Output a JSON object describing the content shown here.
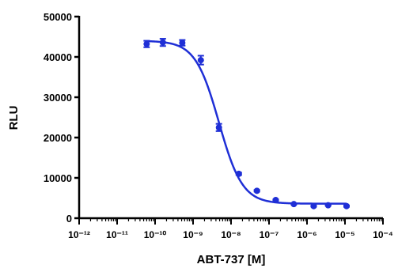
{
  "chart_data": {
    "type": "scatter",
    "title": "",
    "xlabel": "ABT-737 [M]",
    "ylabel": "RLU",
    "x_scale": "log",
    "xlim": [
      1e-12,
      0.0001
    ],
    "ylim": [
      0,
      50000
    ],
    "x_ticks": [
      {
        "value": 1e-12,
        "label": "10⁻¹²"
      },
      {
        "value": 1e-11,
        "label": "10⁻¹¹"
      },
      {
        "value": 1e-10,
        "label": "10⁻¹⁰"
      },
      {
        "value": 1e-09,
        "label": "10⁻⁹"
      },
      {
        "value": 1e-08,
        "label": "10⁻⁸"
      },
      {
        "value": 1e-07,
        "label": "10⁻⁷"
      },
      {
        "value": 1e-06,
        "label": "10⁻⁶"
      },
      {
        "value": 1e-05,
        "label": "10⁻⁵"
      },
      {
        "value": 0.0001,
        "label": "10⁻⁴"
      }
    ],
    "y_ticks": [
      {
        "value": 0,
        "label": "0"
      },
      {
        "value": 10000,
        "label": "10000"
      },
      {
        "value": 20000,
        "label": "20000"
      },
      {
        "value": 30000,
        "label": "30000"
      },
      {
        "value": 40000,
        "label": "40000"
      },
      {
        "value": 50000,
        "label": "50000"
      }
    ],
    "grid": false,
    "legend": "none",
    "series": [
      {
        "color": "#1f2fd6",
        "points": [
          {
            "x": 6e-11,
            "y": 43200,
            "err": 800
          },
          {
            "x": 1.6e-10,
            "y": 43600,
            "err": 900
          },
          {
            "x": 5.2e-10,
            "y": 43500,
            "err": 700
          },
          {
            "x": 1.6e-09,
            "y": 39200,
            "err": 1100
          },
          {
            "x": 4.8e-09,
            "y": 22500,
            "err": 900
          },
          {
            "x": 1.6e-08,
            "y": 11000,
            "err": 300
          },
          {
            "x": 4.8e-08,
            "y": 6800,
            "err": 200
          },
          {
            "x": 1.5e-07,
            "y": 4500,
            "err": 150
          },
          {
            "x": 4.5e-07,
            "y": 3500,
            "err": 100
          },
          {
            "x": 1.5e-06,
            "y": 3000,
            "err": 100
          },
          {
            "x": 3.6e-06,
            "y": 3200,
            "err": 100
          },
          {
            "x": 1.1e-05,
            "y": 3000,
            "err": 150
          }
        ],
        "fit": {
          "model": "sigmoidal dose-response",
          "top": 44000,
          "bottom": 3600,
          "log_ec50": -8.32,
          "hill_slope": -1.4
        }
      }
    ]
  }
}
